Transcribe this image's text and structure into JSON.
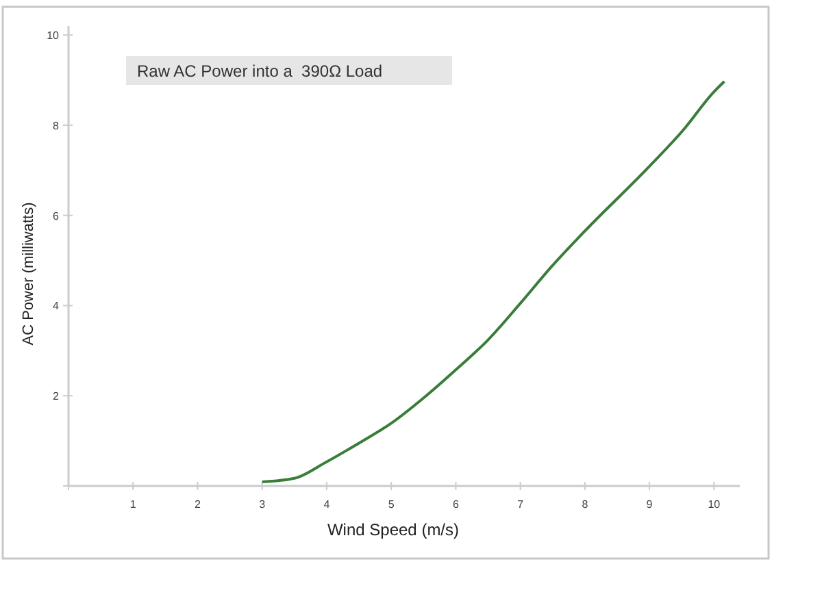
{
  "chart_data": {
    "type": "line",
    "title": "Raw AC Power into a  390Ω Load",
    "xlabel": "Wind Speed (m/s)",
    "ylabel": "AC Power (milliwatts)",
    "x": [
      3.0,
      3.5,
      3.98,
      4.5,
      5.0,
      5.5,
      5.98,
      6.5,
      7.0,
      7.48,
      7.97,
      8.98,
      9.51,
      10.0,
      10.16
    ],
    "series": [
      {
        "color": "#3a7d3a",
        "values": [
          0.09,
          0.17,
          0.52,
          0.95,
          1.39,
          1.95,
          2.55,
          3.24,
          4.05,
          4.86,
          5.61,
          7.06,
          7.87,
          8.74,
          8.97
        ]
      }
    ],
    "xlim": [
      0,
      10.4
    ],
    "ylim": [
      0,
      10.2
    ],
    "xticks": [
      {
        "value": 0,
        "label": null
      },
      1,
      2,
      3,
      4,
      5,
      6,
      7,
      8,
      9,
      10
    ],
    "yticks": [
      {
        "value": 0,
        "label": null
      },
      2,
      4,
      6,
      8,
      10
    ],
    "grid": false,
    "marker": "none",
    "line_style": "solid"
  }
}
